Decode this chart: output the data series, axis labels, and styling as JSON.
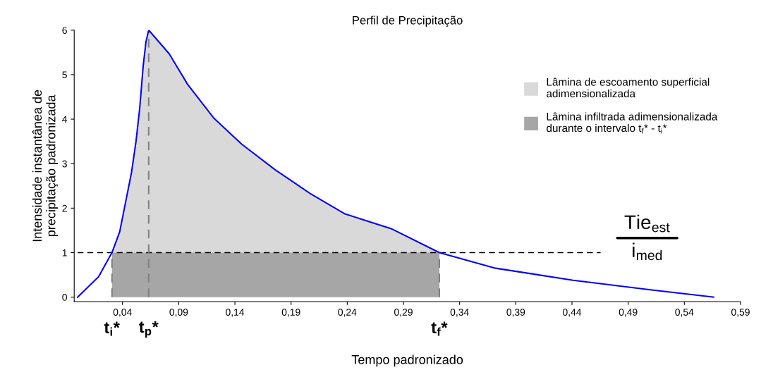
{
  "chart_data": {
    "type": "line",
    "title": "Perfil de Precipitação",
    "xlabel": "Tempo padronizado",
    "ylabel": "Intensidade instantânea de\nprecipitação padronizada",
    "xlim": [
      -0.003,
      0.59
    ],
    "ylim": [
      -0.1,
      6
    ],
    "xticks": [
      {
        "value": 0.04,
        "label": "0,04"
      },
      {
        "value": 0.09,
        "label": "0,09"
      },
      {
        "value": 0.14,
        "label": "0,14"
      },
      {
        "value": 0.19,
        "label": "0,19"
      },
      {
        "value": 0.24,
        "label": "0,24"
      },
      {
        "value": 0.29,
        "label": "0,29"
      },
      {
        "value": 0.34,
        "label": "0,34"
      },
      {
        "value": 0.39,
        "label": "0,39"
      },
      {
        "value": 0.44,
        "label": "0,44"
      },
      {
        "value": 0.49,
        "label": "0,49"
      },
      {
        "value": 0.54,
        "label": "0,54"
      },
      {
        "value": 0.59,
        "label": "0,59"
      }
    ],
    "yticks": [
      0,
      1,
      2,
      3,
      4,
      5,
      6
    ],
    "grid": false,
    "legend": "top right",
    "series": [
      {
        "type": "area",
        "name": "Lâmina de escoamento superficial\nadimensionalizada",
        "color": "#d9d9d9",
        "x": [
          0.0306,
          0.0375,
          0.0438,
          0.048,
          0.052,
          0.0553,
          0.0584,
          0.0609,
          0.0633,
          0.0815,
          0.098,
          0.121,
          0.146,
          0.176,
          0.207,
          0.238,
          0.279,
          0.322
        ],
        "values": [
          1.0,
          1.47,
          2.27,
          2.8,
          3.5,
          4.24,
          5.2,
          5.74,
          6.0,
          5.47,
          4.78,
          4.03,
          3.44,
          2.86,
          2.33,
          1.87,
          1.54,
          1.0
        ]
      },
      {
        "type": "area",
        "name": "Lâmina infiltrada adimensionalizada\ndurante o intervalo t$_{f}$* - t$_{i}$*",
        "color": "#a6a6a6",
        "x": [
          0.0306,
          0.322
        ],
        "values": [
          1,
          1
        ]
      },
      {
        "color": "#0000ff",
        "x": [
          0.0,
          0.0187,
          0.0306,
          0.0375,
          0.0438,
          0.048,
          0.052,
          0.0553,
          0.0584,
          0.0609,
          0.0633,
          0.0815,
          0.098,
          0.121,
          0.146,
          0.176,
          0.207,
          0.238,
          0.279,
          0.322,
          0.372,
          0.441,
          0.511,
          0.566
        ],
        "values": [
          0.0,
          0.46,
          1.0,
          1.47,
          2.27,
          2.8,
          3.5,
          4.24,
          5.2,
          5.74,
          6.0,
          5.47,
          4.78,
          4.03,
          3.44,
          2.86,
          2.33,
          1.87,
          1.54,
          1.0,
          0.65,
          0.38,
          0.16,
          0.0
        ]
      }
    ],
    "ref_lines": [
      {
        "axis": "y",
        "value": 1,
        "color": "#000000",
        "line_style": "dashed"
      },
      {
        "axis": "x",
        "value": 0.0306,
        "label": "t$_{i}$*",
        "color": "#808080",
        "line_style": "dashed"
      },
      {
        "axis": "x",
        "value": 0.0633,
        "label": "t$_{p}$*",
        "color": "#808080",
        "line_style": "dashed"
      },
      {
        "axis": "x",
        "value": 0.322,
        "label": "t$_{f}$*",
        "color": "#808080",
        "line_style": "dashed"
      }
    ],
    "annotations": [
      "Tie$_{est}$",
      "i$_{med}$"
    ]
  }
}
